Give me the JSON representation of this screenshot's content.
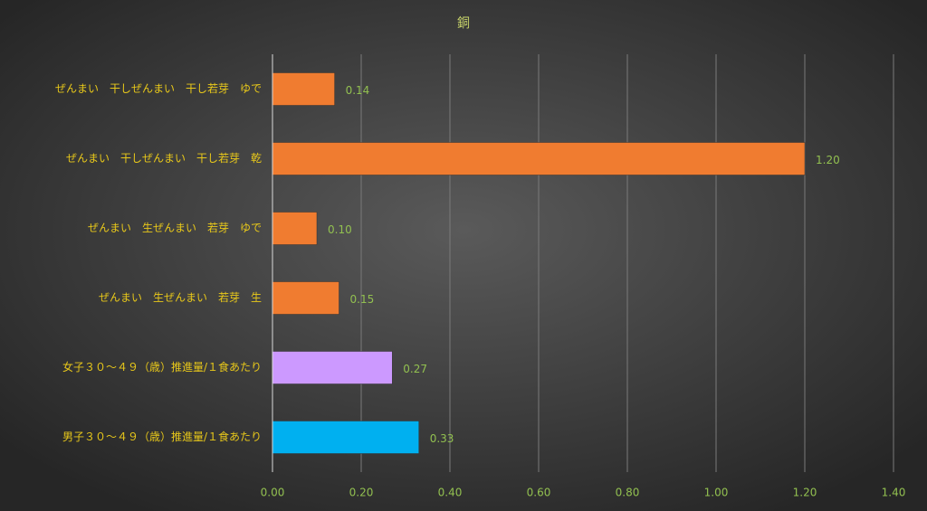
{
  "chart_data": {
    "type": "barh",
    "title": "銅",
    "categories": [
      "ぜんまい　干しぜんまい　干し若芽　ゆで",
      "ぜんまい　干しぜんまい　干し若芽　乾",
      "ぜんまい　生ぜんまい　若芽　ゆで",
      "ぜんまい　生ぜんまい　若芽　生",
      "女子３０～４９（歳）推進量/１食あたり",
      "男子３０～４９（歳）推進量/１食あたり"
    ],
    "values": [
      0.14,
      1.2,
      0.1,
      0.15,
      0.27,
      0.33
    ],
    "value_labels": [
      "0.14",
      "1.20",
      "0.10",
      "0.15",
      "0.27",
      "0.33"
    ],
    "colors": [
      "#f07c30",
      "#f07c30",
      "#f07c30",
      "#f07c30",
      "#cc99ff",
      "#00b0f0"
    ],
    "xlim": [
      0,
      1.4
    ],
    "xticks": [
      {
        "value": 0,
        "label": "0.00"
      },
      {
        "value": 0.2,
        "label": "0.20"
      },
      {
        "value": 0.4,
        "label": "0.40"
      },
      {
        "value": 0.6,
        "label": "0.60"
      },
      {
        "value": 0.8,
        "label": "0.80"
      },
      {
        "value": 1,
        "label": "1.00"
      },
      {
        "value": 1.2,
        "label": "1.20"
      },
      {
        "value": 1.4,
        "label": "1.40"
      }
    ],
    "grid": true
  }
}
